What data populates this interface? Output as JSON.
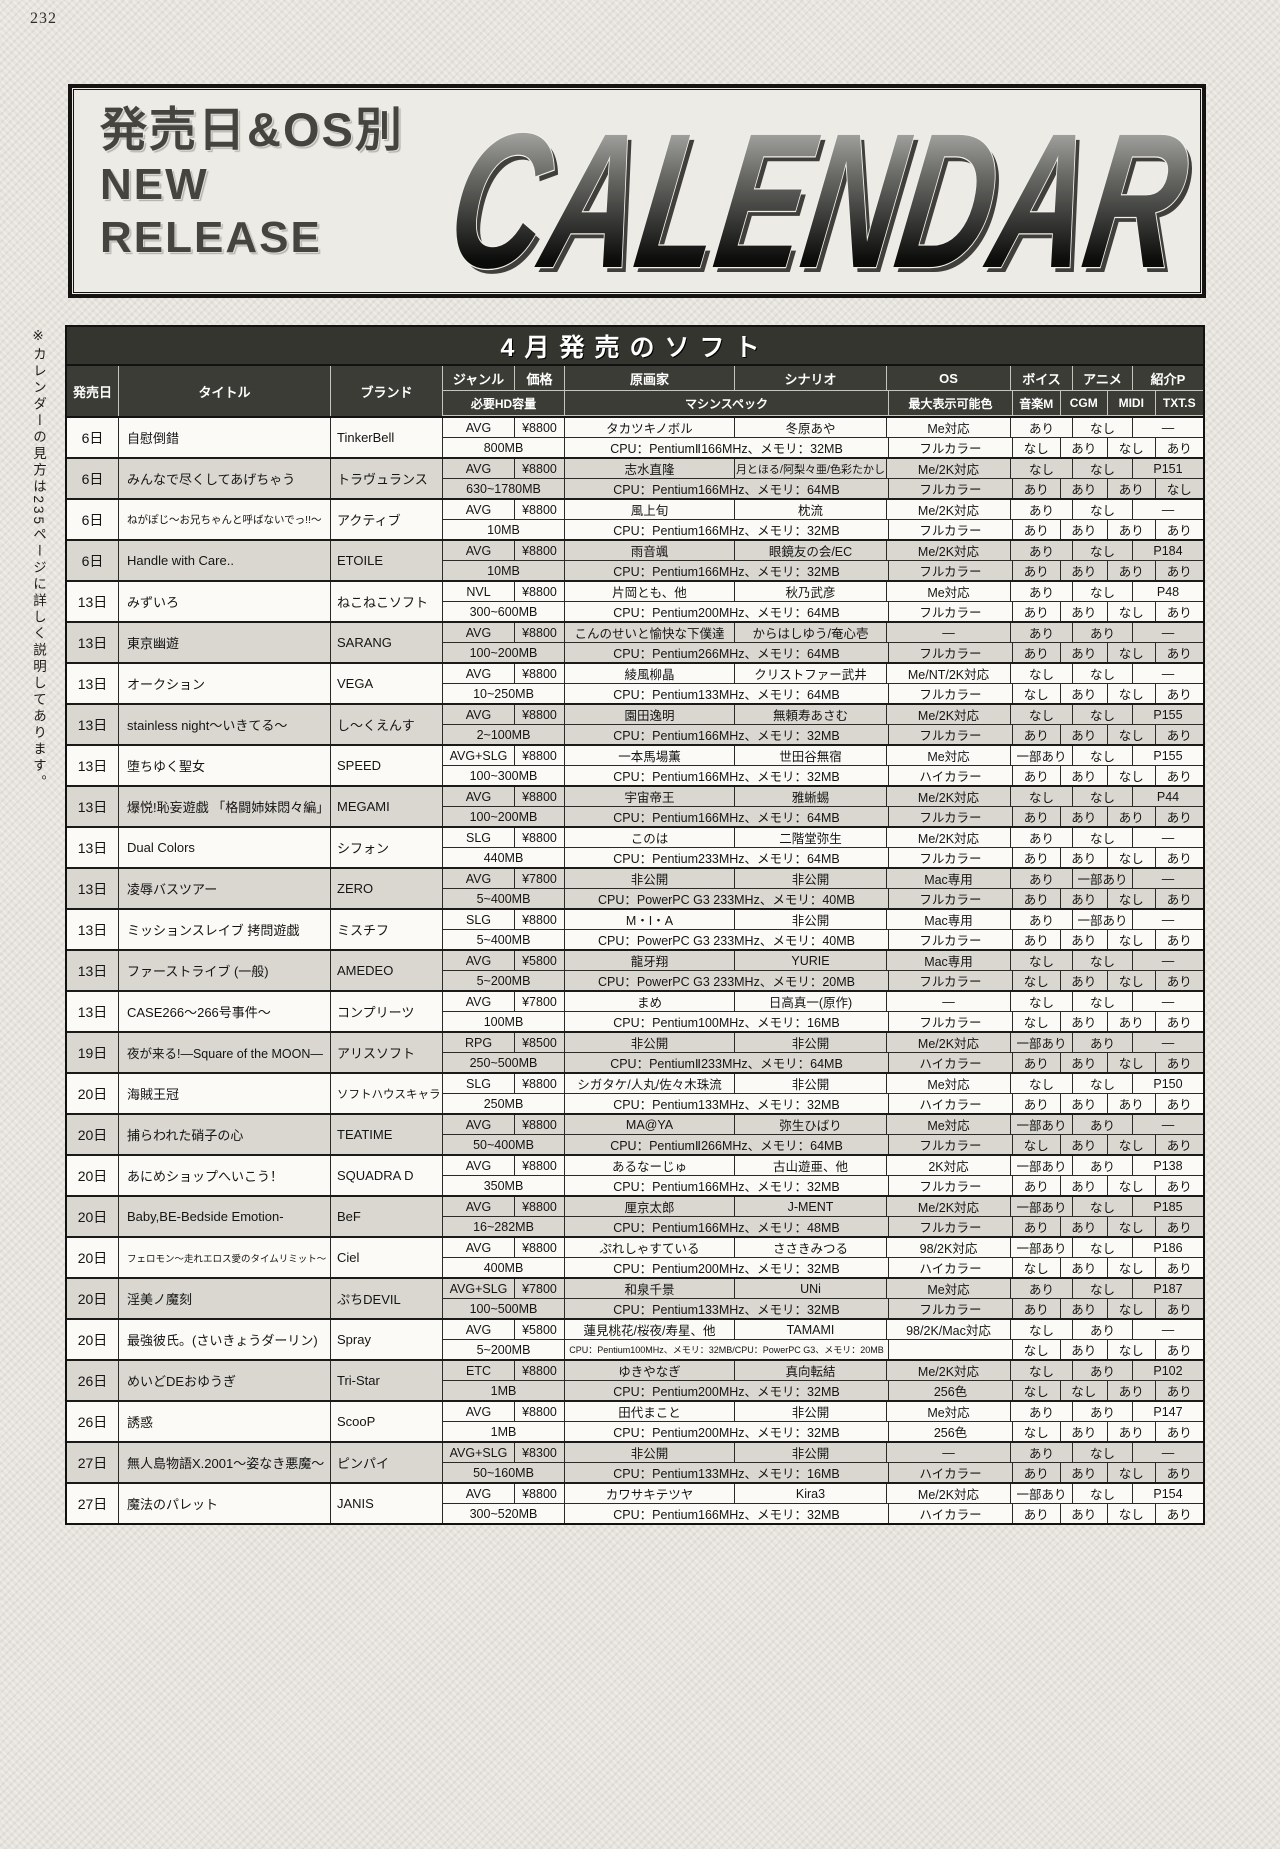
{
  "page_number": "232",
  "banner": {
    "subtitle": "発売日&OS別",
    "line_new": "NEW",
    "line_release": "RELEASE",
    "wordmark": "CALENDAR"
  },
  "side_note": "※カレンダーの見方は235ページに詳しく説明してあります。",
  "palette": {
    "paper": "#e7e4de",
    "header_bg": "#3c3c36",
    "title_bar_bg": "#35352f",
    "row_alt_bg": "#d9d7d0",
    "row_bg": "#fbfaf6",
    "line": "#2a2a28"
  },
  "table": {
    "title": "4月発売のソフト",
    "headers": {
      "date": "発売日",
      "title": "タイトル",
      "brand": "ブランド",
      "genre": "ジャンル",
      "price": "価格",
      "artist": "原画家",
      "scenario": "シナリオ",
      "os": "OS",
      "voice": "ボイス",
      "anime": "アニメ",
      "page": "紹介P",
      "hd": "必要HD容量",
      "spec": "マシンスペック",
      "colors": "最大表示可能色",
      "music": "音楽M",
      "cgm": "CGM",
      "midi": "MIDI",
      "txts": "TXT.S"
    },
    "entries": [
      {
        "date": "6日",
        "title": "自慰倒錯",
        "brand": "TinkerBell",
        "genre": "AVG",
        "price": "¥8800",
        "artist": "タカツキノボル",
        "scenario": "冬原あや",
        "os": "Me対応",
        "voice": "あり",
        "anime": "なし",
        "page": "—",
        "hd": "800MB",
        "spec": "CPU：PentiumⅡ166MHz、メモリ：32MB",
        "colors": "フルカラー",
        "music": "なし",
        "cgm": "あり",
        "midi": "なし",
        "txts": "あり"
      },
      {
        "date": "6日",
        "title": "みんなで尽くしてあげちゃう",
        "brand": "トラヴュランス",
        "genre": "AVG",
        "price": "¥8800",
        "artist": "志水直隆",
        "scenario": "月とほる/阿梨々亜/色彩たかし",
        "os": "Me/2K対応",
        "voice": "なし",
        "anime": "なし",
        "page": "P151",
        "hd": "630~1780MB",
        "spec": "CPU：Pentium166MHz、メモリ：64MB",
        "colors": "フルカラー",
        "music": "あり",
        "cgm": "あり",
        "midi": "あり",
        "txts": "なし"
      },
      {
        "date": "6日",
        "title": "ねがぽじ〜お兄ちゃんと呼ばないでっ!!〜",
        "brand": "アクティブ",
        "genre": "AVG",
        "price": "¥8800",
        "artist": "風上旬",
        "scenario": "枕流",
        "os": "Me/2K対応",
        "voice": "あり",
        "anime": "なし",
        "page": "—",
        "hd": "10MB",
        "spec": "CPU：Pentium166MHz、メモリ：32MB",
        "colors": "フルカラー",
        "music": "あり",
        "cgm": "あり",
        "midi": "あり",
        "txts": "あり"
      },
      {
        "date": "6日",
        "title": "Handle with Care..",
        "brand": "ETOILE",
        "genre": "AVG",
        "price": "¥8800",
        "artist": "雨音颯",
        "scenario": "眼鏡友の会/EC",
        "os": "Me/2K対応",
        "voice": "あり",
        "anime": "なし",
        "page": "P184",
        "hd": "10MB",
        "spec": "CPU：Pentium166MHz、メモリ：32MB",
        "colors": "フルカラー",
        "music": "あり",
        "cgm": "あり",
        "midi": "あり",
        "txts": "あり"
      },
      {
        "date": "13日",
        "title": "みずいろ",
        "brand": "ねこねこソフト",
        "genre": "NVL",
        "price": "¥8800",
        "artist": "片岡とも、他",
        "scenario": "秋乃武彦",
        "os": "Me対応",
        "voice": "あり",
        "anime": "なし",
        "page": "P48",
        "hd": "300~600MB",
        "spec": "CPU：Pentium200MHz、メモリ：64MB",
        "colors": "フルカラー",
        "music": "あり",
        "cgm": "あり",
        "midi": "なし",
        "txts": "あり"
      },
      {
        "date": "13日",
        "title": "東京幽遊",
        "brand": "SARANG",
        "genre": "AVG",
        "price": "¥8800",
        "artist": "こんのせいと愉快な下僕達",
        "scenario": "からはしゆう/奄心壱",
        "os": "—",
        "voice": "あり",
        "anime": "あり",
        "page": "—",
        "hd": "100~200MB",
        "spec": "CPU：Pentium266MHz、メモリ：64MB",
        "colors": "フルカラー",
        "music": "あり",
        "cgm": "あり",
        "midi": "なし",
        "txts": "あり"
      },
      {
        "date": "13日",
        "title": "オークション",
        "brand": "VEGA",
        "genre": "AVG",
        "price": "¥8800",
        "artist": "綾風柳晶",
        "scenario": "クリストファー武井",
        "os": "Me/NT/2K対応",
        "voice": "なし",
        "anime": "なし",
        "page": "—",
        "hd": "10~250MB",
        "spec": "CPU：Pentium133MHz、メモリ：64MB",
        "colors": "フルカラー",
        "music": "なし",
        "cgm": "あり",
        "midi": "なし",
        "txts": "あり"
      },
      {
        "date": "13日",
        "title": "stainless night〜いきてる〜",
        "brand": "し〜くえんす",
        "genre": "AVG",
        "price": "¥8800",
        "artist": "園田逸明",
        "scenario": "無頼寿あさむ",
        "os": "Me/2K対応",
        "voice": "なし",
        "anime": "なし",
        "page": "P155",
        "hd": "2~100MB",
        "spec": "CPU：Pentium166MHz、メモリ：32MB",
        "colors": "フルカラー",
        "music": "あり",
        "cgm": "あり",
        "midi": "なし",
        "txts": "あり"
      },
      {
        "date": "13日",
        "title": "堕ちゆく聖女",
        "brand": "SPEED",
        "genre": "AVG+SLG",
        "price": "¥8800",
        "artist": "一本馬場薫",
        "scenario": "世田谷無宿",
        "os": "Me対応",
        "voice": "一部あり",
        "anime": "なし",
        "page": "P155",
        "hd": "100~300MB",
        "spec": "CPU：Pentium166MHz、メモリ：32MB",
        "colors": "ハイカラー",
        "music": "あり",
        "cgm": "あり",
        "midi": "なし",
        "txts": "あり"
      },
      {
        "date": "13日",
        "title": "爆悦!恥妄遊戯 「格闘姉妹悶々編」",
        "brand": "MEGAMI",
        "genre": "AVG",
        "price": "¥8800",
        "artist": "宇宙帝王",
        "scenario": "雅蜥蜴",
        "os": "Me/2K対応",
        "voice": "なし",
        "anime": "なし",
        "page": "P44",
        "hd": "100~200MB",
        "spec": "CPU：Pentium166MHz、メモリ：64MB",
        "colors": "フルカラー",
        "music": "あり",
        "cgm": "あり",
        "midi": "あり",
        "txts": "あり"
      },
      {
        "date": "13日",
        "title": "Dual Colors",
        "brand": "シフォン",
        "genre": "SLG",
        "price": "¥8800",
        "artist": "このは",
        "scenario": "二階堂弥生",
        "os": "Me/2K対応",
        "voice": "あり",
        "anime": "なし",
        "page": "—",
        "hd": "440MB",
        "spec": "CPU：Pentium233MHz、メモリ：64MB",
        "colors": "フルカラー",
        "music": "あり",
        "cgm": "あり",
        "midi": "なし",
        "txts": "あり"
      },
      {
        "date": "13日",
        "title": "凌辱バスツアー",
        "brand": "ZERO",
        "genre": "AVG",
        "price": "¥7800",
        "artist": "非公開",
        "scenario": "非公開",
        "os": "Mac専用",
        "voice": "あり",
        "anime": "一部あり",
        "page": "—",
        "hd": "5~400MB",
        "spec": "CPU：PowerPC G3 233MHz、メモリ：40MB",
        "colors": "フルカラー",
        "music": "あり",
        "cgm": "あり",
        "midi": "なし",
        "txts": "あり"
      },
      {
        "date": "13日",
        "title": "ミッションスレイブ 拷問遊戯",
        "brand": "ミスチフ",
        "genre": "SLG",
        "price": "¥8800",
        "artist": "M・I・A",
        "scenario": "非公開",
        "os": "Mac専用",
        "voice": "あり",
        "anime": "一部あり",
        "page": "—",
        "hd": "5~400MB",
        "spec": "CPU：PowerPC G3 233MHz、メモリ：40MB",
        "colors": "フルカラー",
        "music": "あり",
        "cgm": "あり",
        "midi": "なし",
        "txts": "あり"
      },
      {
        "date": "13日",
        "title": "ファーストライブ (一般)",
        "brand": "AMEDEO",
        "genre": "AVG",
        "price": "¥5800",
        "artist": "龍牙翔",
        "scenario": "YURIE",
        "os": "Mac専用",
        "voice": "なし",
        "anime": "なし",
        "page": "—",
        "hd": "5~200MB",
        "spec": "CPU：PowerPC G3 233MHz、メモリ：20MB",
        "colors": "フルカラー",
        "music": "なし",
        "cgm": "あり",
        "midi": "なし",
        "txts": "あり"
      },
      {
        "date": "13日",
        "title": "CASE266〜266号事件〜",
        "brand": "コンプリーツ",
        "genre": "AVG",
        "price": "¥7800",
        "artist": "まめ",
        "scenario": "日高真一(原作)",
        "os": "—",
        "voice": "なし",
        "anime": "なし",
        "page": "—",
        "hd": "100MB",
        "spec": "CPU：Pentium100MHz、メモリ：16MB",
        "colors": "フルカラー",
        "music": "なし",
        "cgm": "あり",
        "midi": "あり",
        "txts": "あり"
      },
      {
        "date": "19日",
        "title": "夜が来る!—Square of the MOON—",
        "brand": "アリスソフト",
        "genre": "RPG",
        "price": "¥8500",
        "artist": "非公開",
        "scenario": "非公開",
        "os": "Me/2K対応",
        "voice": "一部あり",
        "anime": "あり",
        "page": "—",
        "hd": "250~500MB",
        "spec": "CPU：PentiumⅡ233MHz、メモリ：64MB",
        "colors": "ハイカラー",
        "music": "あり",
        "cgm": "あり",
        "midi": "なし",
        "txts": "あり"
      },
      {
        "date": "20日",
        "title": "海賊王冠",
        "brand": "ソフトハウスキャラ",
        "genre": "SLG",
        "price": "¥8800",
        "artist": "シガタケ/人丸/佐々木珠流",
        "scenario": "非公開",
        "os": "Me対応",
        "voice": "なし",
        "anime": "なし",
        "page": "P150",
        "hd": "250MB",
        "spec": "CPU：Pentium133MHz、メモリ：32MB",
        "colors": "ハイカラー",
        "music": "あり",
        "cgm": "あり",
        "midi": "あり",
        "txts": "あり"
      },
      {
        "date": "20日",
        "title": "捕らわれた硝子の心",
        "brand": "TEATIME",
        "genre": "AVG",
        "price": "¥8800",
        "artist": "MA@YA",
        "scenario": "弥生ひばり",
        "os": "Me対応",
        "voice": "一部あり",
        "anime": "あり",
        "page": "—",
        "hd": "50~400MB",
        "spec": "CPU：PentiumⅡ266MHz、メモリ：64MB",
        "colors": "フルカラー",
        "music": "なし",
        "cgm": "あり",
        "midi": "なし",
        "txts": "あり"
      },
      {
        "date": "20日",
        "title": "あにめショップへいこう！",
        "brand": "SQUADRA D",
        "genre": "AVG",
        "price": "¥8800",
        "artist": "あるなーじゅ",
        "scenario": "古山遊亜、他",
        "os": "2K対応",
        "voice": "一部あり",
        "anime": "あり",
        "page": "P138",
        "hd": "350MB",
        "spec": "CPU：Pentium166MHz、メモリ：32MB",
        "colors": "フルカラー",
        "music": "あり",
        "cgm": "あり",
        "midi": "なし",
        "txts": "あり"
      },
      {
        "date": "20日",
        "title": "Baby,BE-Bedside Emotion-",
        "brand": "BeF",
        "genre": "AVG",
        "price": "¥8800",
        "artist": "厘京太郎",
        "scenario": "J-MENT",
        "os": "Me/2K対応",
        "voice": "一部あり",
        "anime": "なし",
        "page": "P185",
        "hd": "16~282MB",
        "spec": "CPU：Pentium166MHz、メモリ：48MB",
        "colors": "フルカラー",
        "music": "あり",
        "cgm": "あり",
        "midi": "なし",
        "txts": "あり"
      },
      {
        "date": "20日",
        "title": "フェロモン〜走れエロス愛のタイムリミット〜",
        "brand": "Ciel",
        "genre": "AVG",
        "price": "¥8800",
        "artist": "ぷれしゃすている",
        "scenario": "ささきみつる",
        "os": "98/2K対応",
        "voice": "一部あり",
        "anime": "なし",
        "page": "P186",
        "hd": "400MB",
        "spec": "CPU：Pentium200MHz、メモリ：32MB",
        "colors": "ハイカラー",
        "music": "なし",
        "cgm": "あり",
        "midi": "なし",
        "txts": "あり"
      },
      {
        "date": "20日",
        "title": "淫美ノ魔刻",
        "brand": "ぷちDEVIL",
        "genre": "AVG+SLG",
        "price": "¥7800",
        "artist": "和泉千景",
        "scenario": "UNi",
        "os": "Me対応",
        "voice": "あり",
        "anime": "なし",
        "page": "P187",
        "hd": "100~500MB",
        "spec": "CPU：Pentium133MHz、メモリ：32MB",
        "colors": "フルカラー",
        "music": "あり",
        "cgm": "あり",
        "midi": "なし",
        "txts": "あり"
      },
      {
        "date": "20日",
        "title": "最強彼氏。(さいきょうダーリン)",
        "brand": "Spray",
        "genre": "AVG",
        "price": "¥5800",
        "artist": "蓮見桃花/桜夜/寿星、他",
        "scenario": "TAMAMI",
        "os": "98/2K/Mac対応",
        "voice": "なし",
        "anime": "あり",
        "page": "—",
        "hd": "5~200MB",
        "spec": "CPU：Pentium100MHz、メモリ：32MB/CPU：PowerPC G3、メモリ：20MB",
        "colors": "",
        "music": "なし",
        "cgm": "あり",
        "midi": "なし",
        "txts": "あり"
      },
      {
        "date": "26日",
        "title": "めいどDEおゆうぎ",
        "brand": "Tri-Star",
        "genre": "ETC",
        "price": "¥8800",
        "artist": "ゆきやなぎ",
        "scenario": "真向転結",
        "os": "Me/2K対応",
        "voice": "なし",
        "anime": "あり",
        "page": "P102",
        "hd": "1MB",
        "spec": "CPU：Pentium200MHz、メモリ：32MB",
        "colors": "256色",
        "music": "なし",
        "cgm": "なし",
        "midi": "あり",
        "txts": "あり"
      },
      {
        "date": "26日",
        "title": "誘惑",
        "brand": "ScooP",
        "genre": "AVG",
        "price": "¥8800",
        "artist": "田代まこと",
        "scenario": "非公開",
        "os": "Me対応",
        "voice": "あり",
        "anime": "あり",
        "page": "P147",
        "hd": "1MB",
        "spec": "CPU：Pentium200MHz、メモリ：32MB",
        "colors": "256色",
        "music": "なし",
        "cgm": "あり",
        "midi": "あり",
        "txts": "あり"
      },
      {
        "date": "27日",
        "title": "無人島物語X.2001〜姿なき悪魔〜",
        "brand": "ピンパイ",
        "genre": "AVG+SLG",
        "price": "¥8300",
        "artist": "非公開",
        "scenario": "非公開",
        "os": "—",
        "voice": "あり",
        "anime": "なし",
        "page": "—",
        "hd": "50~160MB",
        "spec": "CPU：Pentium133MHz、メモリ：16MB",
        "colors": "ハイカラー",
        "music": "あり",
        "cgm": "あり",
        "midi": "なし",
        "txts": "あり"
      },
      {
        "date": "27日",
        "title": "魔法のパレット",
        "brand": "JANIS",
        "genre": "AVG",
        "price": "¥8800",
        "artist": "カワサキテツヤ",
        "scenario": "Kira3",
        "os": "Me/2K対応",
        "voice": "一部あり",
        "anime": "なし",
        "page": "P154",
        "hd": "300~520MB",
        "spec": "CPU：Pentium166MHz、メモリ：32MB",
        "colors": "ハイカラー",
        "music": "あり",
        "cgm": "あり",
        "midi": "なし",
        "txts": "あり"
      }
    ]
  }
}
